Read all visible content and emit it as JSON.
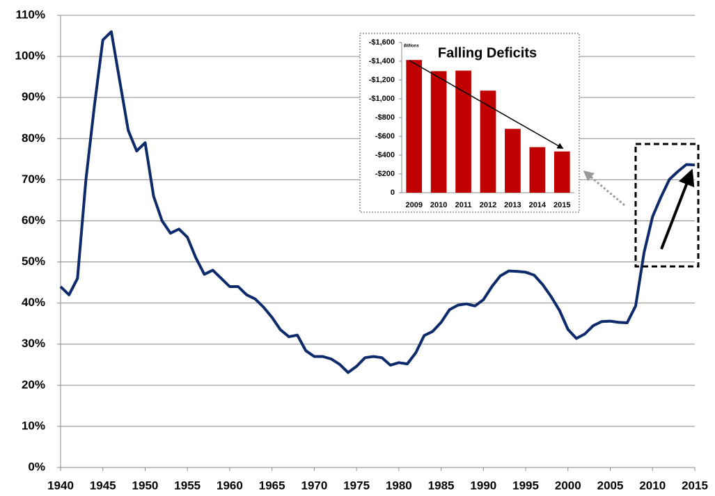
{
  "chart_data": [
    {
      "type": "line",
      "x": [
        1940,
        1941,
        1942,
        1943,
        1944,
        1945,
        1946,
        1947,
        1948,
        1949,
        1950,
        1951,
        1952,
        1953,
        1954,
        1955,
        1956,
        1957,
        1958,
        1959,
        1960,
        1961,
        1962,
        1963,
        1964,
        1965,
        1966,
        1967,
        1968,
        1969,
        1970,
        1971,
        1972,
        1973,
        1974,
        1975,
        1976,
        1977,
        1978,
        1979,
        1980,
        1981,
        1982,
        1983,
        1984,
        1985,
        1986,
        1987,
        1988,
        1989,
        1990,
        1991,
        1992,
        1993,
        1994,
        1995,
        1996,
        1997,
        1998,
        1999,
        2000,
        2001,
        2002,
        2003,
        2004,
        2005,
        2006,
        2007,
        2008,
        2009,
        2010,
        2011,
        2012,
        2013,
        2014,
        2015
      ],
      "values": [
        44,
        42,
        46,
        70,
        88,
        104,
        106,
        94,
        82,
        77,
        79,
        66,
        60,
        57,
        58,
        56,
        51,
        47,
        48,
        46,
        44,
        44,
        42,
        41,
        39,
        36.5,
        33.5,
        31.8,
        32.2,
        28.4,
        27,
        27,
        26.4,
        25.1,
        23.1,
        24.6,
        26.7,
        27,
        26.7,
        24.9,
        25.5,
        25.2,
        27.9,
        32.1,
        33.1,
        35.3,
        38.4,
        39.5,
        39.8,
        39.3,
        40.8,
        44,
        46.6,
        47.8,
        47.7,
        47.5,
        46.8,
        44.5,
        41.6,
        38.2,
        33.6,
        31.4,
        32.5,
        34.5,
        35.5,
        35.6,
        35.3,
        35.2,
        39.3,
        52.3,
        61,
        65.8,
        70.1,
        72,
        73.7,
        73.6
      ],
      "color": "#0d2a6b",
      "xlim": [
        1940,
        2015
      ],
      "xticks": [
        1940,
        1945,
        1950,
        1955,
        1960,
        1965,
        1970,
        1975,
        1980,
        1985,
        1990,
        1995,
        2000,
        2005,
        2010,
        2015
      ],
      "ylim": [
        0,
        110
      ],
      "yticks": [
        {
          "value": 0,
          "label": "0%"
        },
        {
          "value": 10,
          "label": "10%"
        },
        {
          "value": 20,
          "label": "20%"
        },
        {
          "value": 30,
          "label": "30%"
        },
        {
          "value": 40,
          "label": "40%"
        },
        {
          "value": 50,
          "label": "50%"
        },
        {
          "value": 60,
          "label": "60%"
        },
        {
          "value": 70,
          "label": "70%"
        },
        {
          "value": 80,
          "label": "80%"
        },
        {
          "value": 90,
          "label": "90%"
        },
        {
          "value": 100,
          "label": "100%"
        },
        {
          "value": 110,
          "label": "110%"
        }
      ],
      "grid": true
    },
    {
      "type": "bar",
      "title": "Falling Deficits",
      "y_label": "Billions",
      "categories": [
        "2009",
        "2010",
        "2011",
        "2012",
        "2013",
        "2014",
        "2015"
      ],
      "values": [
        -1413,
        -1294,
        -1300,
        -1087,
        -680,
        -485,
        -439
      ],
      "color": "#c00000",
      "ylim": [
        0,
        -1600
      ],
      "yticks": [
        0,
        {
          "value": -200,
          "label": "-$200"
        },
        {
          "value": -400,
          "label": "-$400"
        },
        {
          "value": -600,
          "label": "-$600"
        },
        {
          "value": -800,
          "label": "-$800"
        },
        {
          "value": -1000,
          "label": "-$1,000"
        },
        {
          "value": -1200,
          "label": "-$1,200"
        },
        {
          "value": -1400,
          "label": "-$1,400"
        },
        {
          "value": -1600,
          "label": "-$1,600"
        }
      ],
      "grid": false
    }
  ]
}
